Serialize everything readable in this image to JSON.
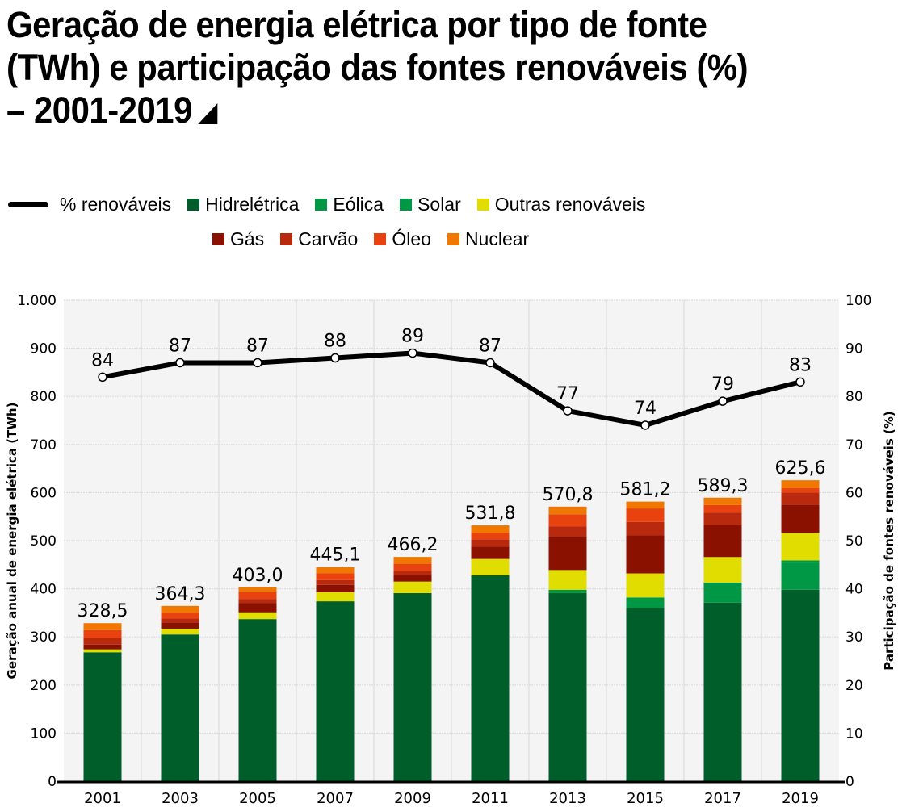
{
  "title": {
    "line1": "Geração de energia elétrica por tipo de fonte",
    "line2": "(TWh) e participação das fontes renováveis (%)",
    "line3": "– 2001-2019"
  },
  "legend": {
    "row1": [
      {
        "key": "pct",
        "label": "% renováveis",
        "type": "line",
        "color": "#000000"
      },
      {
        "key": "hidreletrica",
        "label": "Hidrelétrica",
        "type": "box",
        "color": "#005e2b"
      },
      {
        "key": "eolica",
        "label": "Eólica",
        "type": "box",
        "color": "#009845"
      },
      {
        "key": "solar",
        "label": "Solar",
        "type": "box",
        "color": "#009845"
      },
      {
        "key": "outras",
        "label": "Outras renováveis",
        "type": "box",
        "color": "#e1dd00"
      }
    ],
    "row2": [
      {
        "key": "gas",
        "label": "Gás",
        "type": "box",
        "color": "#8a1100"
      },
      {
        "key": "carvao",
        "label": "Carvão",
        "type": "box",
        "color": "#b8290d"
      },
      {
        "key": "oleo",
        "label": "Óleo",
        "type": "box",
        "color": "#e84211"
      },
      {
        "key": "nuclear",
        "label": "Nuclear",
        "type": "box",
        "color": "#f07700"
      }
    ]
  },
  "chart_data": {
    "type": "bar",
    "stacked": true,
    "title": "Geração de energia elétrica por tipo de fonte (TWh) e participação das fontes renováveis (%) – 2001-2019",
    "xlabel": "",
    "ylabel": "Geração anual de energia elétrica (TWh)",
    "y2label": "Participação de fontes renováveis (%)",
    "ylim": [
      0,
      1000
    ],
    "y2lim": [
      0,
      100
    ],
    "yticks": [
      "0",
      "100",
      "200",
      "300",
      "400",
      "500",
      "600",
      "700",
      "800",
      "900",
      "1.000"
    ],
    "y2ticks": [
      "0",
      "10",
      "20",
      "30",
      "40",
      "50",
      "60",
      "70",
      "80",
      "90",
      "100"
    ],
    "grid": true,
    "legend_position": "top",
    "categories": [
      "2001",
      "2003",
      "2005",
      "2007",
      "2009",
      "2011",
      "2013",
      "2015",
      "2017",
      "2019"
    ],
    "series": [
      {
        "name": "Hidrelétrica",
        "color": "#005e2b",
        "values": [
          268,
          305,
          337,
          374,
          391,
          428,
          391,
          360,
          371,
          398
        ]
      },
      {
        "name": "Eólica",
        "color": "#009845",
        "values": [
          0,
          0,
          0,
          0,
          0,
          0,
          7,
          22,
          42,
          56
        ]
      },
      {
        "name": "Solar",
        "color": "#009845",
        "values": [
          0,
          0,
          0,
          0,
          0,
          0,
          0,
          0,
          0,
          5
        ]
      },
      {
        "name": "Outras renováveis",
        "color": "#e1dd00",
        "values": [
          6,
          12,
          14,
          19,
          24,
          34,
          41,
          50,
          53,
          57
        ]
      },
      {
        "name": "Gás",
        "color": "#8a1100",
        "values": [
          10,
          13,
          19,
          15,
          13,
          26,
          69,
          79,
          66,
          59
        ]
      },
      {
        "name": "Carvão",
        "color": "#b8290d",
        "values": [
          13,
          8,
          9,
          10,
          9,
          15,
          22,
          28,
          26,
          25
        ]
      },
      {
        "name": "Óleo",
        "color": "#e84211",
        "values": [
          17,
          12,
          14,
          14,
          15,
          13,
          25,
          28,
          16,
          9
        ]
      },
      {
        "name": "Nuclear",
        "color": "#f07700",
        "values": [
          14.5,
          14.3,
          10,
          13.1,
          14.2,
          15.8,
          15.8,
          14.2,
          15.3,
          16.6
        ]
      }
    ],
    "totals": [
      328.5,
      364.3,
      403.0,
      445.1,
      466.2,
      531.8,
      570.8,
      581.2,
      589.3,
      625.6
    ],
    "total_labels": [
      "328,5",
      "364,3",
      "403,0",
      "445,1",
      "466,2",
      "531,8",
      "570,8",
      "581,2",
      "589,3",
      "625,6"
    ],
    "line": {
      "name": "% renováveis",
      "axis": "right",
      "color": "#000000",
      "values": [
        84,
        87,
        87,
        88,
        89,
        87,
        77,
        74,
        79,
        83
      ],
      "labels": [
        "84",
        "87",
        "87",
        "88",
        "89",
        "87",
        "77",
        "74",
        "79",
        "83"
      ]
    }
  }
}
